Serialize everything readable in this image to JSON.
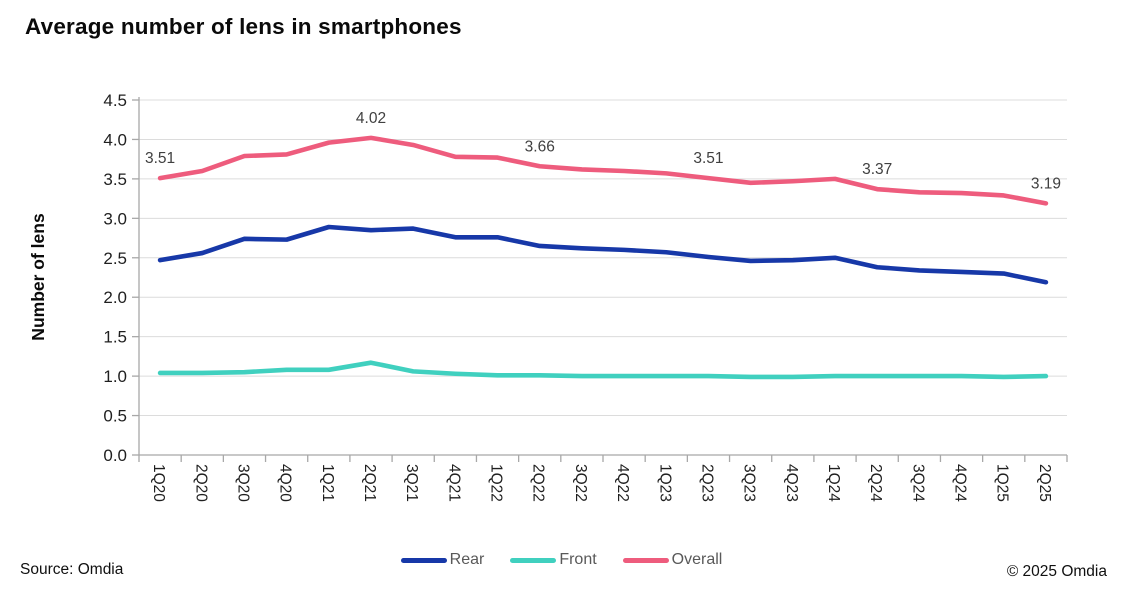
{
  "title": "Average number of lens in smartphones",
  "source": "Source: Omdia",
  "copyright": "© 2025 Omdia",
  "colors": {
    "rear": "#1738a8",
    "front": "#40d0bf",
    "overall": "#ee5c7d",
    "grid": "#dcdcdc",
    "axis": "#a8a8a8",
    "tick_text": "#1f1f1f",
    "data_label": "#404040",
    "legend_text": "#595959",
    "title_text": "#0a0a0a"
  },
  "legend": {
    "items": [
      {
        "label": "Rear"
      },
      {
        "label": "Front"
      },
      {
        "label": "Overall"
      }
    ]
  },
  "chart_data": {
    "type": "line",
    "title": "Average number of lens in smartphones",
    "xlabel": "",
    "ylabel": "Number of lens",
    "ylim": [
      0,
      4.5
    ],
    "ytick_step": 0.5,
    "grid": "horizontal",
    "legend_position": "bottom",
    "yticks": [
      "0.0",
      "0.5",
      "1.0",
      "1.5",
      "2.0",
      "2.5",
      "3.0",
      "3.5",
      "4.0",
      "4.5"
    ],
    "categories": [
      "1Q20",
      "2Q20",
      "3Q20",
      "4Q20",
      "1Q21",
      "2Q21",
      "3Q21",
      "4Q21",
      "1Q22",
      "2Q22",
      "3Q22",
      "4Q22",
      "1Q23",
      "2Q23",
      "3Q23",
      "4Q23",
      "1Q24",
      "2Q24",
      "3Q24",
      "4Q24",
      "1Q25",
      "2Q25"
    ],
    "series": [
      {
        "name": "Rear",
        "color": "#1738a8",
        "values": [
          2.47,
          2.56,
          2.74,
          2.73,
          2.89,
          2.85,
          2.87,
          2.76,
          2.76,
          2.65,
          2.62,
          2.6,
          2.57,
          2.51,
          2.46,
          2.47,
          2.5,
          2.38,
          2.34,
          2.32,
          2.3,
          2.19
        ]
      },
      {
        "name": "Front",
        "color": "#40d0bf",
        "values": [
          1.04,
          1.04,
          1.05,
          1.08,
          1.08,
          1.17,
          1.06,
          1.03,
          1.01,
          1.01,
          1.0,
          1.0,
          1.0,
          1.0,
          0.99,
          0.99,
          1.0,
          1.0,
          1.0,
          1.0,
          0.99,
          1.0
        ]
      },
      {
        "name": "Overall",
        "color": "#ee5c7d",
        "values": [
          3.51,
          3.6,
          3.79,
          3.81,
          3.96,
          4.02,
          3.93,
          3.78,
          3.77,
          3.66,
          3.62,
          3.6,
          3.57,
          3.51,
          3.45,
          3.47,
          3.5,
          3.37,
          3.33,
          3.32,
          3.29,
          3.19
        ],
        "data_labels": [
          {
            "index": 0,
            "text": "3.51"
          },
          {
            "index": 5,
            "text": "4.02"
          },
          {
            "index": 9,
            "text": "3.66"
          },
          {
            "index": 13,
            "text": "3.51"
          },
          {
            "index": 17,
            "text": "3.37"
          },
          {
            "index": 21,
            "text": "3.19"
          }
        ]
      }
    ]
  }
}
